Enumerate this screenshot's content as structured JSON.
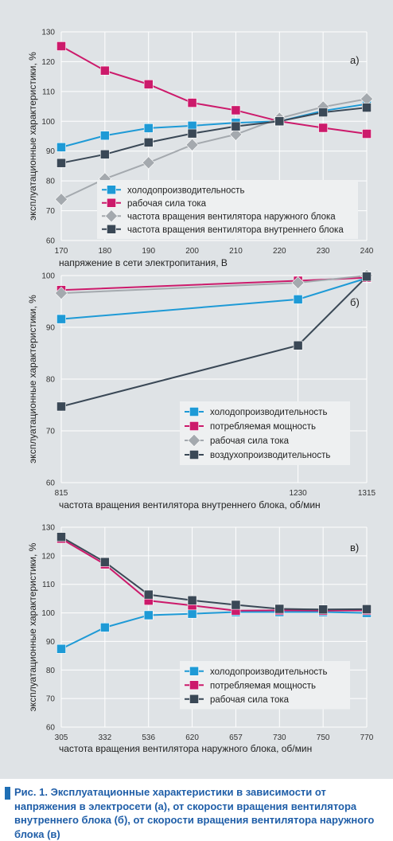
{
  "caption": "Рис. 1. Эксплуатационные характеристики в зависимости от напряжения в электросети (а), от скорости вращения вентилятора внутреннего блока (б), от скорости вращения вентилятора наружного блока (в)",
  "colors": {
    "blue": "#1e9ad6",
    "magenta": "#cc1a6b",
    "gray": "#a4a9ae",
    "dark": "#3a4856",
    "panel_bg": "#dfe3e6",
    "legend_bg": "#eef0f1",
    "caption": "#1f5ea8"
  },
  "chart_data": [
    {
      "type": "line",
      "panel_label": "а)",
      "ylabel": "эксплуатационные характеристики, %",
      "xlabel": "напряжение в сети электропитания, В",
      "ylim": [
        60,
        130
      ],
      "yticks": [
        "60",
        "70",
        "80",
        "90",
        "100",
        "110",
        "120",
        "130"
      ],
      "x": [
        "170",
        "180",
        "190",
        "200",
        "210",
        "220",
        "230",
        "240"
      ],
      "legend_position": "bottom-right",
      "grid": true,
      "series": [
        {
          "name": "холодопроизводительность",
          "color": "#1e9ad6",
          "marker": "square",
          "values": [
            91.3,
            95.2,
            97.7,
            98.5,
            99.5,
            100.0,
            103.5,
            105.8
          ]
        },
        {
          "name": "рабочая сила тока",
          "color": "#cc1a6b",
          "marker": "square",
          "values": [
            125.2,
            117.0,
            112.4,
            106.2,
            103.7,
            100.0,
            97.8,
            95.8
          ]
        },
        {
          "name": "частота вращения вентилятора наружного блока",
          "color": "#a4a9ae",
          "marker": "diamond",
          "values": [
            73.8,
            80.7,
            86.1,
            92.1,
            95.6,
            101.0,
            104.8,
            107.5
          ]
        },
        {
          "name": "частота вращения вентилятора внутреннего блока",
          "color": "#3a4856",
          "marker": "square",
          "values": [
            86.0,
            88.9,
            92.9,
            95.9,
            98.3,
            100.0,
            103.0,
            104.6
          ]
        }
      ]
    },
    {
      "type": "line",
      "panel_label": "б)",
      "ylabel": "эксплуатационные характеристики, %",
      "xlabel": "частота вращения вентилятора внутреннего блока, об/мин",
      "ylim": [
        60,
        100
      ],
      "yticks": [
        "60",
        "70",
        "80",
        "90",
        "100"
      ],
      "x": [
        "815",
        "1230",
        "1315"
      ],
      "legend_position": "bottom-right",
      "grid": true,
      "series": [
        {
          "name": "холодопроизводительность",
          "color": "#1e9ad6",
          "marker": "square",
          "values": [
            91.6,
            95.4,
            99.5
          ]
        },
        {
          "name": "потребляемая мощность",
          "color": "#cc1a6b",
          "marker": "square",
          "values": [
            97.2,
            99.0,
            99.6
          ]
        },
        {
          "name": "рабочая сила тока",
          "color": "#a4a9ae",
          "marker": "diamond",
          "values": [
            96.6,
            98.6,
            100.0
          ]
        },
        {
          "name": "воздухопроизводительность",
          "color": "#3a4856",
          "marker": "square",
          "values": [
            74.7,
            86.5,
            99.8
          ]
        }
      ]
    },
    {
      "type": "line",
      "panel_label": "в)",
      "ylabel": "эксплуатационные характеристики, %",
      "xlabel": "частота вращения вентилятора наружного блока, об/мин",
      "ylim": [
        60,
        130
      ],
      "yticks": [
        "60",
        "70",
        "80",
        "90",
        "100",
        "110",
        "120",
        "130"
      ],
      "x": [
        "305",
        "332",
        "536",
        "620",
        "657",
        "730",
        "750",
        "770"
      ],
      "legend_position": "bottom-right",
      "grid": true,
      "series": [
        {
          "name": "холодопроизводительность",
          "color": "#1e9ad6",
          "marker": "square",
          "values": [
            87.4,
            94.9,
            99.2,
            99.7,
            100.3,
            100.3,
            100.3,
            100.0
          ]
        },
        {
          "name": "потребляемая мощность",
          "color": "#cc1a6b",
          "marker": "square",
          "values": [
            126.0,
            117.0,
            104.3,
            102.6,
            100.8,
            100.9,
            100.8,
            100.9
          ]
        },
        {
          "name": "рабочая сила тока",
          "color": "#3a4856",
          "marker": "square",
          "values": [
            126.6,
            117.8,
            106.4,
            104.4,
            102.8,
            101.4,
            101.2,
            101.3
          ]
        }
      ]
    }
  ]
}
